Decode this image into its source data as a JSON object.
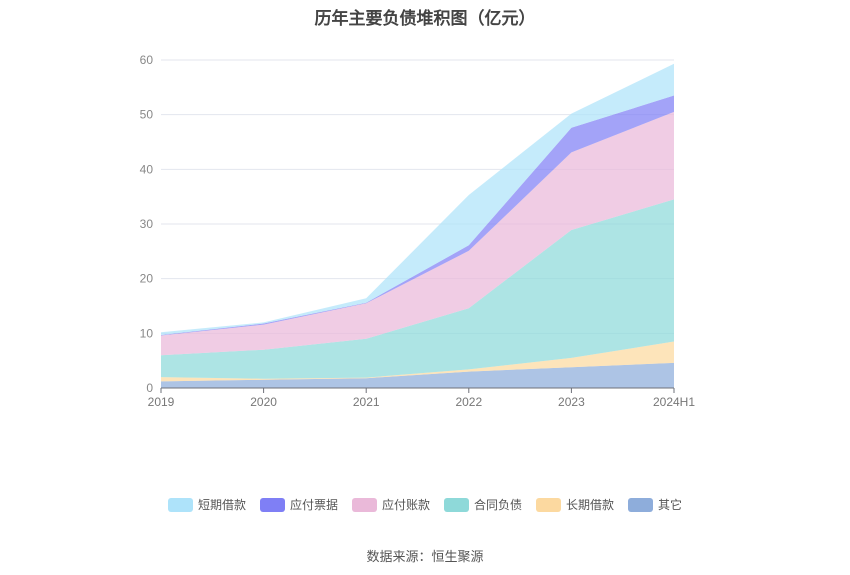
{
  "chart_data": {
    "type": "area",
    "stacked": true,
    "title": "历年主要负债堆积图（亿元）",
    "categories": [
      "2019",
      "2020",
      "2021",
      "2022",
      "2023",
      "2024H1"
    ],
    "ylim": [
      0,
      60
    ],
    "yticks": [
      0,
      10,
      20,
      30,
      40,
      50,
      60
    ],
    "grid": true,
    "legend_position": "bottom",
    "series": [
      {
        "name": "其它",
        "color": "#8eaddb",
        "values": [
          1.2,
          1.5,
          1.8,
          3.0,
          3.8,
          4.6
        ]
      },
      {
        "name": "长期借款",
        "color": "#fcd9a0",
        "values": [
          0.8,
          0.2,
          0.1,
          0.4,
          1.7,
          3.9
        ]
      },
      {
        "name": "合同负债",
        "color": "#8ed9d9",
        "values": [
          4.0,
          5.3,
          7.1,
          11.2,
          23.4,
          26.0
        ]
      },
      {
        "name": "应付账款",
        "color": "#eab9d9",
        "values": [
          3.6,
          4.6,
          6.5,
          10.5,
          14.2,
          16.0
        ]
      },
      {
        "name": "应付票据",
        "color": "#7f7ff5",
        "values": [
          0.1,
          0.2,
          0.1,
          1.0,
          4.5,
          3.0
        ]
      },
      {
        "name": "短期借款",
        "color": "#aee3fa",
        "values": [
          0.5,
          0.2,
          0.8,
          9.2,
          2.6,
          5.8
        ]
      }
    ]
  },
  "legend_order": [
    "短期借款",
    "应付票据",
    "应付账款",
    "合同负债",
    "长期借款",
    "其它"
  ],
  "source_note": "数据来源：恒生聚源"
}
